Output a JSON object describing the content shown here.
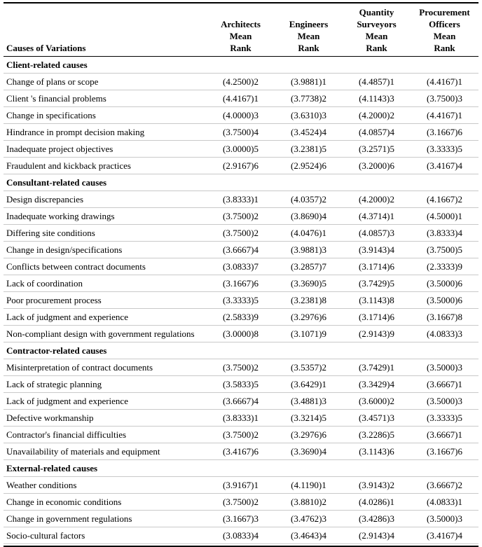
{
  "table": {
    "row_header": "Causes of Variations",
    "columns": [
      {
        "name": "architects",
        "lines": [
          "Architects",
          "Mean",
          "Rank"
        ]
      },
      {
        "name": "engineers",
        "lines": [
          "Engineers",
          "Mean",
          "Rank"
        ]
      },
      {
        "name": "quantity-surveyors",
        "lines": [
          "Quantity",
          "Surveyors",
          "Mean",
          "Rank"
        ]
      },
      {
        "name": "procurement-officers",
        "lines": [
          "Procurement",
          "Officers",
          "Mean",
          "Rank"
        ]
      }
    ],
    "sections": [
      {
        "title": "Client-related causes",
        "rows": [
          {
            "cause": "Change of plans or scope",
            "values": [
              "(4.2500)2",
              "(3.9881)1",
              "(4.4857)1",
              "(4.4167)1"
            ]
          },
          {
            "cause": "Client 's financial problems",
            "values": [
              "(4.4167)1",
              "(3.7738)2",
              "(4.1143)3",
              "(3.7500)3"
            ]
          },
          {
            "cause": "Change in specifications",
            "values": [
              "(4.0000)3",
              "(3.6310)3",
              "(4.2000)2",
              "(4.4167)1"
            ]
          },
          {
            "cause": "Hindrance in prompt decision making",
            "values": [
              "(3.7500)4",
              "(3.4524)4",
              "(4.0857)4",
              "(3.1667)6"
            ]
          },
          {
            "cause": "Inadequate project objectives",
            "values": [
              "(3.0000)5",
              "(3.2381)5",
              "(3.2571)5",
              "(3.3333)5"
            ]
          },
          {
            "cause": "Fraudulent and kickback practices",
            "values": [
              "(2.9167)6",
              "(2.9524)6",
              "(3.2000)6",
              "(3.4167)4"
            ]
          }
        ]
      },
      {
        "title": "Consultant-related causes",
        "rows": [
          {
            "cause": "Design discrepancies",
            "values": [
              "(3.8333)1",
              "(4.0357)2",
              "(4.2000)2",
              "(4.1667)2"
            ]
          },
          {
            "cause": "Inadequate working drawings",
            "values": [
              "(3.7500)2",
              "(3.8690)4",
              "(4.3714)1",
              "(4.5000)1"
            ]
          },
          {
            "cause": "Differing site conditions",
            "values": [
              "(3.7500)2",
              "(4.0476)1",
              "(4.0857)3",
              "(3.8333)4"
            ]
          },
          {
            "cause": "Change in design/specifications",
            "values": [
              "(3.6667)4",
              "(3.9881)3",
              "(3.9143)4",
              "(3.7500)5"
            ]
          },
          {
            "cause": "Conflicts between contract documents",
            "values": [
              "(3.0833)7",
              "(3.2857)7",
              "(3.1714)6",
              "(2.3333)9"
            ]
          },
          {
            "cause": "Lack of coordination",
            "values": [
              "(3.1667)6",
              "(3.3690)5",
              "(3.7429)5",
              "(3.5000)6"
            ]
          },
          {
            "cause": "Poor procurement process",
            "values": [
              "(3.3333)5",
              "(3.2381)8",
              "(3.1143)8",
              "(3.5000)6"
            ]
          },
          {
            "cause": "Lack of judgment and experience",
            "values": [
              "(2.5833)9",
              "(3.2976)6",
              "(3.1714)6",
              "(3.1667)8"
            ]
          },
          {
            "cause": "Non-compliant design with government regulations",
            "values": [
              "(3.0000)8",
              "(3.1071)9",
              "(2.9143)9",
              "(4.0833)3"
            ]
          }
        ]
      },
      {
        "title": "Contractor-related causes",
        "rows": [
          {
            "cause": "Misinterpretation of contract documents",
            "values": [
              "(3.7500)2",
              "(3.5357)2",
              "(3.7429)1",
              "(3.5000)3"
            ]
          },
          {
            "cause": "Lack of strategic planning",
            "values": [
              "(3.5833)5",
              "(3.6429)1",
              "(3.3429)4",
              "(3.6667)1"
            ]
          },
          {
            "cause": "Lack of judgment and experience",
            "values": [
              "(3.6667)4",
              "(3.4881)3",
              "(3.6000)2",
              "(3.5000)3"
            ]
          },
          {
            "cause": "Defective workmanship",
            "values": [
              "(3.8333)1",
              "(3.3214)5",
              "(3.4571)3",
              "(3.3333)5"
            ]
          },
          {
            "cause": "Contractor's financial difficulties",
            "values": [
              "(3.7500)2",
              "(3.2976)6",
              "(3.2286)5",
              "(3.6667)1"
            ]
          },
          {
            "cause": "Unavailability of materials and equipment",
            "values": [
              "(3.4167)6",
              "(3.3690)4",
              "(3.1143)6",
              "(3.1667)6"
            ]
          }
        ]
      },
      {
        "title": "External-related causes",
        "rows": [
          {
            "cause": "Weather conditions",
            "values": [
              "(3.9167)1",
              "(4.1190)1",
              "(3.9143)2",
              "(3.6667)2"
            ]
          },
          {
            "cause": "Change in economic conditions",
            "values": [
              "(3.7500)2",
              "(3.8810)2",
              "(4.0286)1",
              "(4.0833)1"
            ]
          },
          {
            "cause": "Change in government regulations",
            "values": [
              "(3.1667)3",
              "(3.4762)3",
              "(3.4286)3",
              "(3.5000)3"
            ]
          },
          {
            "cause": "Socio-cultural factors",
            "values": [
              "(3.0833)4",
              "(3.4643)4",
              "(2.9143)4",
              "(3.4167)4"
            ]
          }
        ]
      }
    ]
  }
}
